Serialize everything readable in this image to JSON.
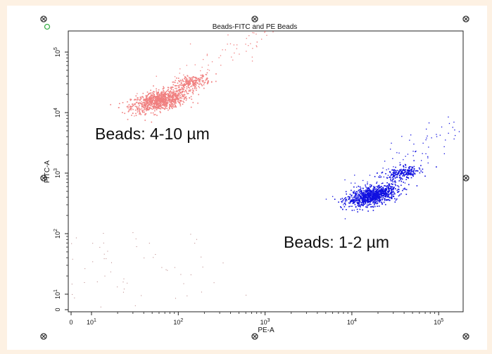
{
  "chart_data": {
    "type": "scatter",
    "title": "Beads-FITC and PE Beads",
    "xlabel": "PE-A",
    "ylabel": "FITC-A",
    "x_scale": "biexponential",
    "y_scale": "biexponential",
    "x_ticks": [
      {
        "label": "0",
        "value": 0
      },
      {
        "label": "10",
        "exp": "1",
        "value": 10
      },
      {
        "label": "10",
        "exp": "2",
        "value": 100
      },
      {
        "label": "10",
        "exp": "3",
        "value": 1000
      },
      {
        "label": "10",
        "exp": "4",
        "value": 10000
      },
      {
        "label": "10",
        "exp": "5",
        "value": 100000
      }
    ],
    "y_ticks": [
      {
        "label": "0",
        "value": 0
      },
      {
        "label": "10",
        "exp": "1",
        "value": 10
      },
      {
        "label": "10",
        "exp": "2",
        "value": 100
      },
      {
        "label": "10",
        "exp": "3",
        "value": 1000
      },
      {
        "label": "10",
        "exp": "4",
        "value": 10000
      },
      {
        "label": "10",
        "exp": "5",
        "value": 100000
      }
    ],
    "xlim": [
      0,
      262143
    ],
    "ylim": [
      0,
      262143
    ],
    "grid": false,
    "series": [
      {
        "name": "Beads: 4-10 µm",
        "color": "#f07f7f",
        "clusters": [
          {
            "x": 60,
            "y": 16000,
            "count": 900,
            "spread": 0.09
          },
          {
            "x": 140,
            "y": 32000,
            "count": 220,
            "spread": 0.06
          }
        ],
        "trail": {
          "from": [
            35,
            13000
          ],
          "to": [
            1000,
            220000
          ],
          "count": 90
        }
      },
      {
        "name": "Beads: 1-2 µm",
        "color": "#1010e0",
        "clusters": [
          {
            "x": 17000,
            "y": 430,
            "count": 900,
            "spread": 0.08
          },
          {
            "x": 38000,
            "y": 1000,
            "count": 220,
            "spread": 0.06
          }
        ],
        "trail": {
          "from": [
            6000,
            250
          ],
          "to": [
            200000,
            9000
          ],
          "count": 110
        }
      }
    ],
    "annotations": [
      {
        "text": "Beads: 4-10 µm",
        "x": 18,
        "y": 5200
      },
      {
        "text": "Beads: 1-2 µm",
        "x": 3000,
        "y": 75
      }
    ]
  }
}
